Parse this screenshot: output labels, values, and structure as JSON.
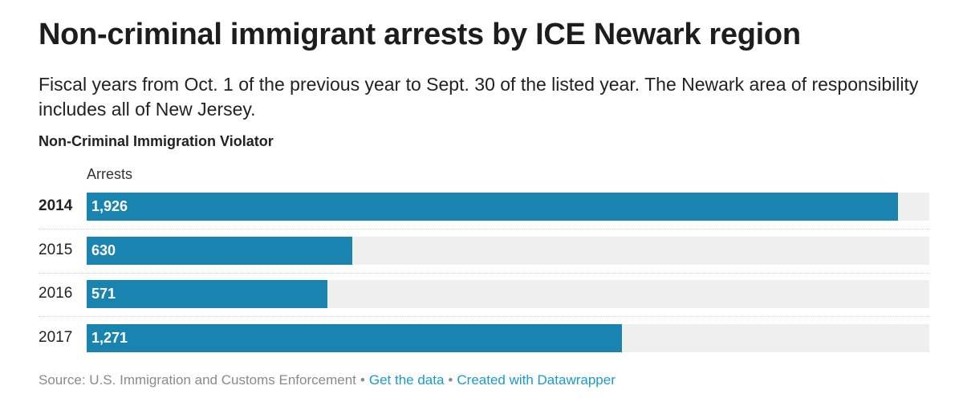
{
  "title": "Non-criminal immigrant arrests by ICE Newark region",
  "subtitle": "Fiscal years from Oct. 1 of the previous year to Sept. 30 of the listed year. The Newark area of responsibility includes all of New Jersey.",
  "section_label": "Non-Criminal Immigration Violator",
  "column_header": "Arrests",
  "footer": {
    "source": "Source: U.S. Immigration and Customs Enforcement",
    "separator": "•",
    "get_data": "Get the data",
    "created_with": "Created with Datawrapper"
  },
  "colors": {
    "bar": "#1a84b0",
    "bar_background": "#efefef",
    "link": "#1a9bcc"
  },
  "chart_data": {
    "type": "bar",
    "orientation": "horizontal",
    "title": "Non-criminal immigrant arrests by ICE Newark region",
    "xlabel": "Arrests",
    "ylabel": "",
    "categories": [
      "2014",
      "2015",
      "2016",
      "2017"
    ],
    "values": [
      1926,
      630,
      571,
      1271
    ],
    "value_labels": [
      "1,926",
      "630",
      "571",
      "1,271"
    ],
    "bold_category": "2014",
    "xlim": [
      0,
      2000
    ],
    "grid": false,
    "legend": "none"
  }
}
